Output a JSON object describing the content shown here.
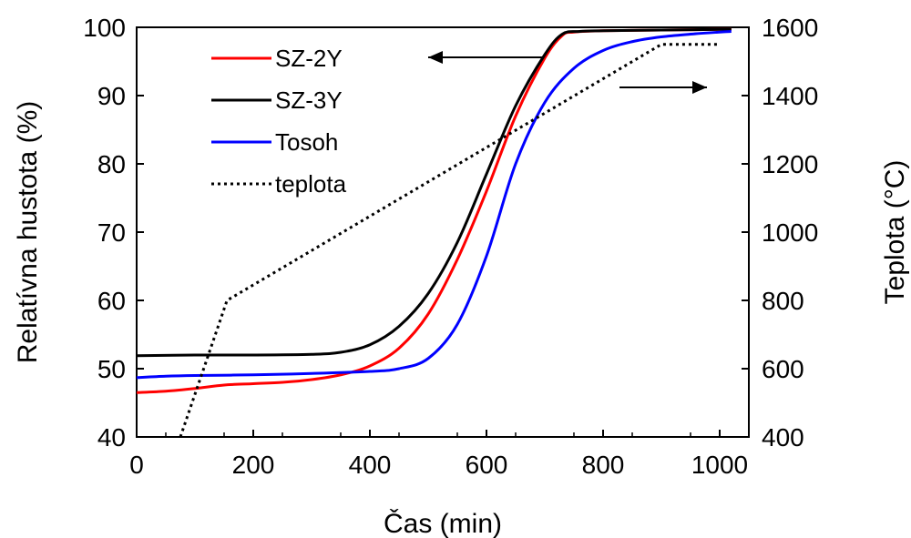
{
  "chart_data": {
    "type": "line",
    "xlabel": "Čas (min)",
    "ylabel_left": "Relatívna hustota  (%)",
    "ylabel_right": "Teplota (°C)",
    "xlim": [
      0,
      1050
    ],
    "ylim_left": [
      40,
      100
    ],
    "ylim_right": [
      400,
      1600
    ],
    "x_ticks": [
      0,
      200,
      400,
      600,
      800,
      1000
    ],
    "y_ticks_left": [
      40,
      50,
      60,
      70,
      80,
      90,
      100
    ],
    "y_ticks_right": [
      400,
      600,
      800,
      1000,
      1200,
      1400,
      1600
    ],
    "grid": false,
    "legend_position": "top-left",
    "series": [
      {
        "name": "SZ-2Y",
        "axis": "left",
        "color": "#ff0000",
        "style": "solid",
        "points": [
          [
            0,
            46.5
          ],
          [
            50,
            46.7
          ],
          [
            100,
            47.1
          ],
          [
            150,
            47.6
          ],
          [
            200,
            47.8
          ],
          [
            250,
            48.0
          ],
          [
            300,
            48.4
          ],
          [
            350,
            49.1
          ],
          [
            400,
            50.4
          ],
          [
            450,
            53.0
          ],
          [
            500,
            58.0
          ],
          [
            550,
            66.0
          ],
          [
            600,
            76.0
          ],
          [
            650,
            87.0
          ],
          [
            700,
            95.5
          ],
          [
            730,
            98.8
          ],
          [
            750,
            99.3
          ],
          [
            800,
            99.5
          ],
          [
            900,
            99.6
          ],
          [
            1000,
            99.7
          ],
          [
            1020,
            99.7
          ]
        ]
      },
      {
        "name": "SZ-3Y",
        "axis": "left",
        "color": "#000000",
        "style": "solid",
        "points": [
          [
            0,
            51.9
          ],
          [
            100,
            52.0
          ],
          [
            200,
            52.0
          ],
          [
            300,
            52.1
          ],
          [
            350,
            52.4
          ],
          [
            400,
            53.5
          ],
          [
            450,
            56.2
          ],
          [
            500,
            61.0
          ],
          [
            550,
            68.5
          ],
          [
            600,
            78.5
          ],
          [
            650,
            88.5
          ],
          [
            700,
            96.0
          ],
          [
            730,
            99.0
          ],
          [
            760,
            99.4
          ],
          [
            800,
            99.5
          ],
          [
            900,
            99.6
          ],
          [
            1000,
            99.7
          ],
          [
            1020,
            99.7
          ]
        ]
      },
      {
        "name": "Tosoh",
        "axis": "left",
        "color": "#0000ff",
        "style": "solid",
        "points": [
          [
            0,
            48.7
          ],
          [
            50,
            48.9
          ],
          [
            100,
            49.0
          ],
          [
            200,
            49.1
          ],
          [
            300,
            49.3
          ],
          [
            400,
            49.6
          ],
          [
            450,
            50.0
          ],
          [
            500,
            51.5
          ],
          [
            550,
            56.5
          ],
          [
            600,
            66.5
          ],
          [
            650,
            80.0
          ],
          [
            700,
            89.0
          ],
          [
            750,
            94.0
          ],
          [
            800,
            96.6
          ],
          [
            850,
            97.9
          ],
          [
            900,
            98.6
          ],
          [
            950,
            99.0
          ],
          [
            1000,
            99.3
          ],
          [
            1020,
            99.4
          ]
        ]
      },
      {
        "name": "teplota",
        "axis": "right",
        "color": "#000000",
        "style": "dotted",
        "points": [
          [
            75,
            400
          ],
          [
            155,
            800
          ],
          [
            900,
            1550
          ],
          [
            1000,
            1550
          ]
        ]
      }
    ],
    "annotations": [
      {
        "type": "arrow",
        "direction": "left",
        "meaning": "left-axis"
      },
      {
        "type": "arrow",
        "direction": "right",
        "meaning": "right-axis"
      }
    ]
  }
}
